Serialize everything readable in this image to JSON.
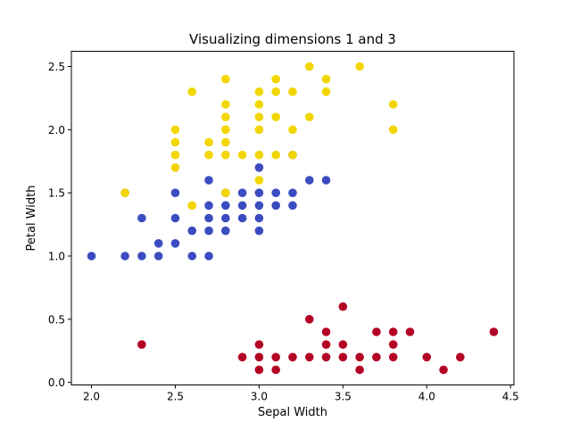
{
  "chart_data": {
    "type": "scatter",
    "title": "Visualizing dimensions 1 and 3",
    "xlabel": "Sepal Width",
    "ylabel": "Petal Width",
    "xlim": [
      1.88,
      4.52
    ],
    "ylim": [
      -0.02,
      2.62
    ],
    "x_ticks": [
      2.0,
      2.5,
      3.0,
      3.5,
      4.0,
      4.5
    ],
    "x_tick_labels": [
      "2.0",
      "2.5",
      "3.0",
      "3.5",
      "4.0",
      "4.5"
    ],
    "y_ticks": [
      0.0,
      0.5,
      1.0,
      1.5,
      2.0,
      2.5
    ],
    "y_tick_labels": [
      "0.0",
      "0.5",
      "1.0",
      "1.5",
      "2.0",
      "2.5"
    ],
    "grid": false,
    "legend": "none",
    "series": [
      {
        "color": "#b40426",
        "points": [
          [
            2.3,
            0.3
          ],
          [
            2.9,
            0.2
          ],
          [
            3.0,
            0.1
          ],
          [
            3.0,
            0.2
          ],
          [
            3.0,
            0.3
          ],
          [
            3.1,
            0.1
          ],
          [
            3.1,
            0.2
          ],
          [
            3.2,
            0.2
          ],
          [
            3.3,
            0.2
          ],
          [
            3.3,
            0.5
          ],
          [
            3.4,
            0.2
          ],
          [
            3.4,
            0.3
          ],
          [
            3.4,
            0.4
          ],
          [
            3.5,
            0.2
          ],
          [
            3.5,
            0.3
          ],
          [
            3.5,
            0.6
          ],
          [
            3.6,
            0.1
          ],
          [
            3.6,
            0.2
          ],
          [
            3.7,
            0.2
          ],
          [
            3.7,
            0.4
          ],
          [
            3.8,
            0.2
          ],
          [
            3.8,
            0.3
          ],
          [
            3.8,
            0.4
          ],
          [
            3.9,
            0.4
          ],
          [
            4.0,
            0.2
          ],
          [
            4.1,
            0.1
          ],
          [
            4.2,
            0.2
          ],
          [
            4.4,
            0.4
          ]
        ]
      },
      {
        "color": "#3b4cc0",
        "points": [
          [
            2.0,
            1.0
          ],
          [
            2.2,
            1.0
          ],
          [
            2.2,
            1.5
          ],
          [
            2.3,
            1.0
          ],
          [
            2.3,
            1.3
          ],
          [
            2.4,
            1.0
          ],
          [
            2.4,
            1.1
          ],
          [
            2.5,
            1.1
          ],
          [
            2.5,
            1.3
          ],
          [
            2.5,
            1.5
          ],
          [
            2.6,
            1.0
          ],
          [
            2.6,
            1.2
          ],
          [
            2.7,
            1.0
          ],
          [
            2.7,
            1.2
          ],
          [
            2.7,
            1.3
          ],
          [
            2.7,
            1.4
          ],
          [
            2.7,
            1.6
          ],
          [
            2.8,
            1.2
          ],
          [
            2.8,
            1.3
          ],
          [
            2.8,
            1.4
          ],
          [
            2.8,
            1.5
          ],
          [
            2.9,
            1.3
          ],
          [
            2.9,
            1.4
          ],
          [
            2.9,
            1.5
          ],
          [
            3.0,
            1.2
          ],
          [
            3.0,
            1.3
          ],
          [
            3.0,
            1.4
          ],
          [
            3.0,
            1.5
          ],
          [
            3.0,
            1.7
          ],
          [
            3.1,
            1.4
          ],
          [
            3.1,
            1.5
          ],
          [
            3.2,
            1.4
          ],
          [
            3.2,
            1.5
          ],
          [
            3.2,
            1.8
          ],
          [
            3.3,
            1.6
          ],
          [
            3.4,
            1.6
          ]
        ]
      },
      {
        "color": "#f2d602",
        "points": [
          [
            2.2,
            1.5
          ],
          [
            2.5,
            1.7
          ],
          [
            2.5,
            1.8
          ],
          [
            2.5,
            1.9
          ],
          [
            2.5,
            2.0
          ],
          [
            2.6,
            1.4
          ],
          [
            2.6,
            2.3
          ],
          [
            2.7,
            1.8
          ],
          [
            2.7,
            1.9
          ],
          [
            2.8,
            1.5
          ],
          [
            2.8,
            1.8
          ],
          [
            2.8,
            1.9
          ],
          [
            2.8,
            2.0
          ],
          [
            2.8,
            2.1
          ],
          [
            2.8,
            2.2
          ],
          [
            2.8,
            2.4
          ],
          [
            2.9,
            1.8
          ],
          [
            3.0,
            1.6
          ],
          [
            3.0,
            1.8
          ],
          [
            3.0,
            2.0
          ],
          [
            3.0,
            2.1
          ],
          [
            3.0,
            2.2
          ],
          [
            3.0,
            2.3
          ],
          [
            3.1,
            1.8
          ],
          [
            3.1,
            2.1
          ],
          [
            3.1,
            2.3
          ],
          [
            3.1,
            2.4
          ],
          [
            3.2,
            1.8
          ],
          [
            3.2,
            2.0
          ],
          [
            3.2,
            2.3
          ],
          [
            3.3,
            2.1
          ],
          [
            3.3,
            2.5
          ],
          [
            3.4,
            2.3
          ],
          [
            3.4,
            2.4
          ],
          [
            3.6,
            2.5
          ],
          [
            3.8,
            2.0
          ],
          [
            3.8,
            2.2
          ]
        ]
      }
    ]
  }
}
